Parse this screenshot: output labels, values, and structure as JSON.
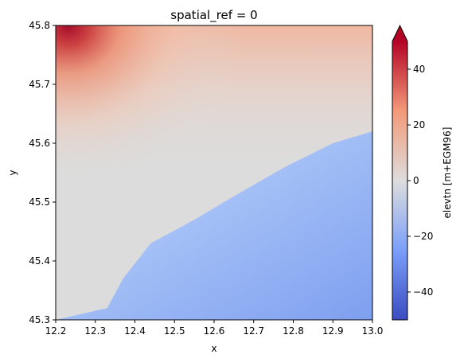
{
  "chart_data": {
    "type": "heatmap",
    "title": "spatial_ref = 0",
    "xlabel": "x",
    "ylabel": "y",
    "xlim": [
      12.2,
      13.0
    ],
    "ylim": [
      45.3,
      45.8
    ],
    "x_ticks": [
      "12.2",
      "12.3",
      "12.4",
      "12.5",
      "12.6",
      "12.7",
      "12.8",
      "12.9",
      "13.0"
    ],
    "y_ticks": [
      "45.3",
      "45.4",
      "45.5",
      "45.6",
      "45.7",
      "45.8"
    ],
    "colormap": "coolwarm",
    "colorbar": {
      "label": "elevtn [m+EGM96]",
      "range": [
        -50,
        50
      ],
      "ticks": [
        "−40",
        "−20",
        "0",
        "20",
        "40"
      ],
      "extend": "max"
    },
    "description_values": {
      "coast_boundary": [
        [
          12.2,
          45.3
        ],
        [
          12.33,
          45.32
        ],
        [
          12.37,
          45.37
        ],
        [
          12.44,
          45.43
        ],
        [
          12.55,
          45.47
        ],
        [
          12.65,
          45.51
        ],
        [
          12.78,
          45.56
        ],
        [
          12.9,
          45.6
        ],
        [
          13.0,
          45.62
        ]
      ],
      "northwest_max": 50,
      "southeast_min": -35
    }
  }
}
